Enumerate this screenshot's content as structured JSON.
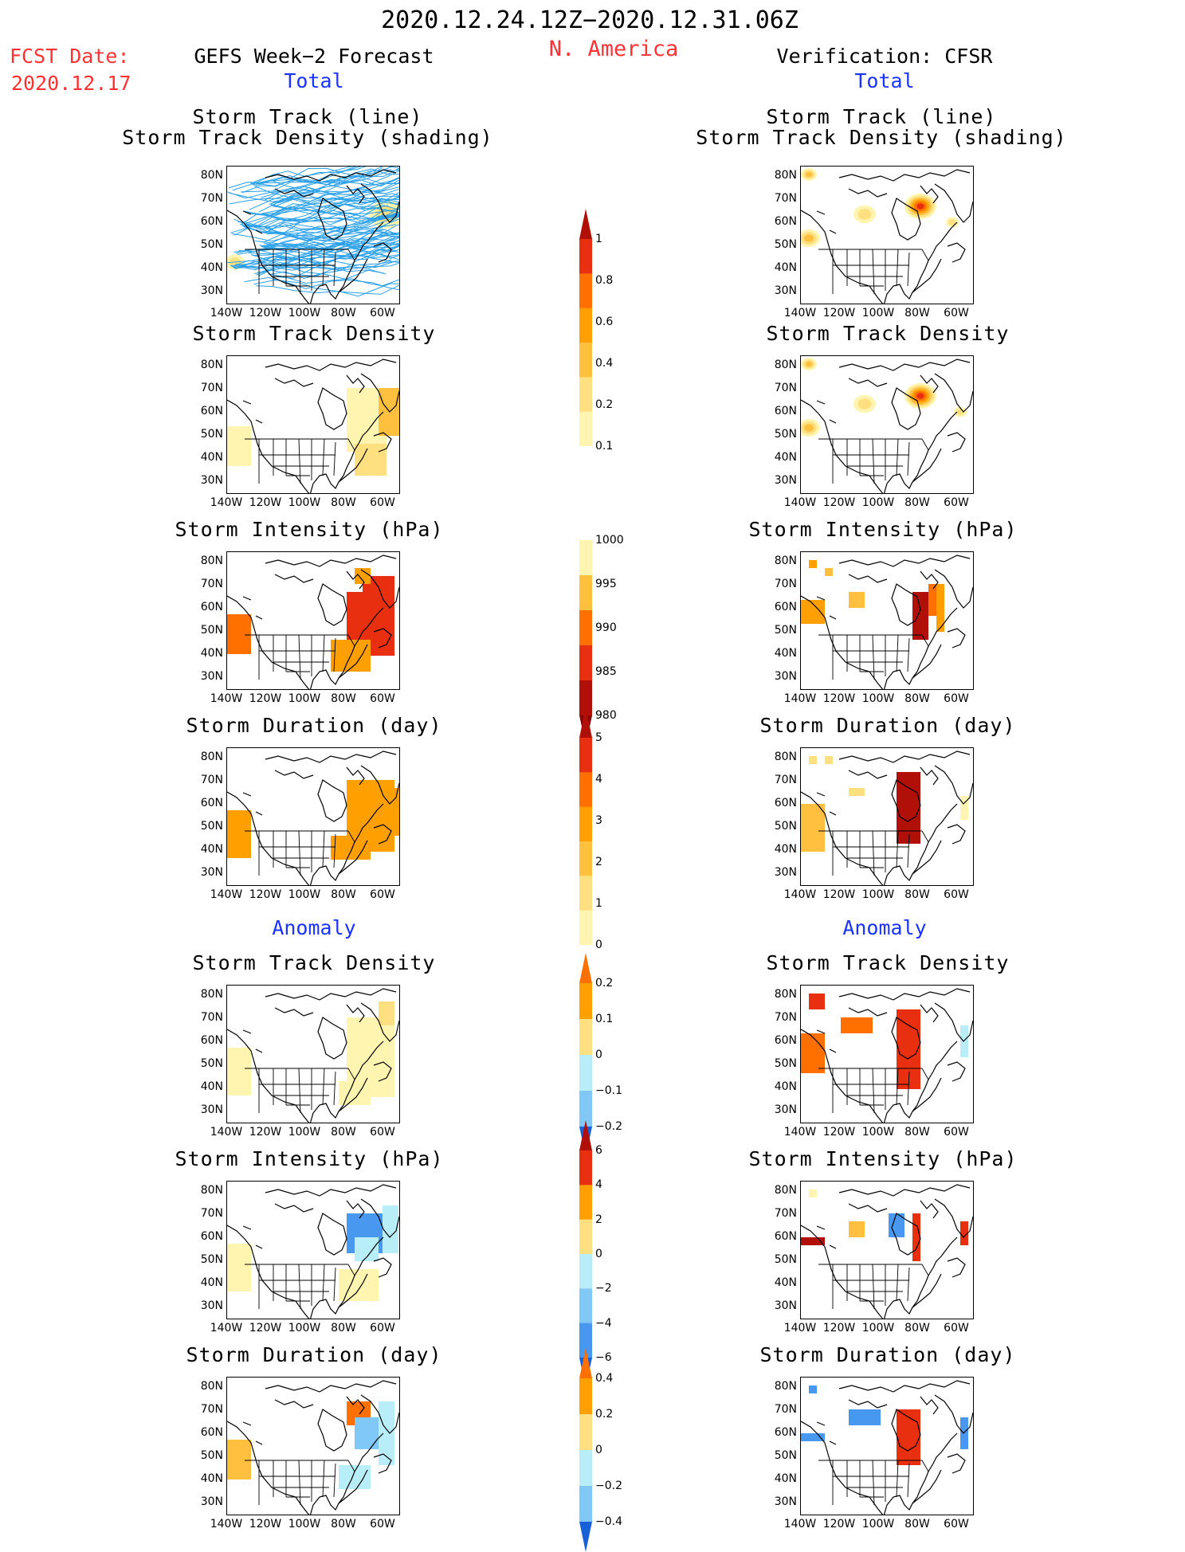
{
  "header": {
    "period": "2020.12.24.12Z−2020.12.31.06Z",
    "region": "N. America",
    "fcst_label": "FCST Date:",
    "fcst_date": "2020.12.17",
    "left_title": "GEFS Week−2 Forecast",
    "right_title": "Verification: CFSR",
    "left_total": "Total",
    "right_total": "Total",
    "left_anomaly": "Anomaly",
    "right_anomaly": "Anomaly"
  },
  "axes": {
    "lat_ticks": [
      "80N",
      "70N",
      "60N",
      "50N",
      "40N",
      "30N"
    ],
    "lon_ticks": [
      "140W",
      "120W",
      "100W",
      "80W",
      "60W"
    ]
  },
  "panels": {
    "track_title_1": "Storm Track (line)",
    "track_title_2": "Storm Track Density (shading)",
    "density": "Storm Track Density",
    "intensity": "Storm Intensity (hPa)",
    "duration": "Storm Duration (day)"
  },
  "colorbars": {
    "density_total": [
      "1",
      "0.8",
      "0.6",
      "0.4",
      "0.2",
      "0.1"
    ],
    "intensity_total": [
      "1000",
      "995",
      "990",
      "985",
      "980"
    ],
    "duration_total": [
      "5",
      "4",
      "3",
      "2",
      "1",
      "0"
    ],
    "density_anom": [
      "0.2",
      "0.1",
      "0",
      "−0.1",
      "−0.2"
    ],
    "intensity_anom": [
      "6",
      "4",
      "2",
      "0",
      "−2",
      "−4",
      "−6"
    ],
    "duration_anom": [
      "0.4",
      "0.2",
      "0",
      "−0.2",
      "−0.4"
    ]
  },
  "colors": {
    "warm": [
      "#fff5b0",
      "#ffe080",
      "#ffc040",
      "#ffa000",
      "#ff7000",
      "#e83010",
      "#b01008"
    ],
    "cool": [
      "#b8eef8",
      "#80c8f8",
      "#4898f0",
      "#1860d8"
    ],
    "track_line": "#2aa0e8"
  }
}
